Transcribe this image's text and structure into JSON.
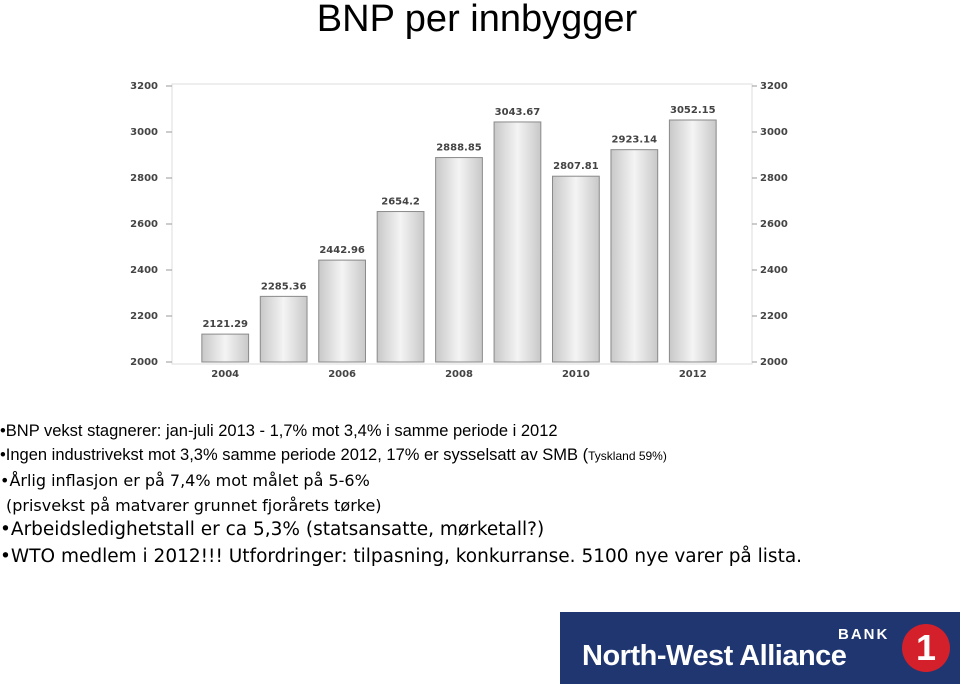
{
  "title": "BNP per innbygger",
  "chart_data": {
    "type": "bar",
    "categories": [
      "2004",
      null,
      "2006",
      null,
      "2008",
      null,
      "2010",
      null,
      "2012"
    ],
    "values": [
      2121.29,
      2285.36,
      2442.96,
      2654.2,
      2888.85,
      3043.67,
      2807.81,
      2923.14,
      3052.15
    ],
    "color": "#e2e2e2",
    "ylim": [
      2000,
      3200
    ],
    "yticks": [
      2000,
      2200,
      2400,
      2600,
      2800,
      3000,
      3200
    ],
    "y2lim": [
      2000,
      3200
    ],
    "y2ticks": [
      2000,
      2200,
      2400,
      2600,
      2800,
      3000,
      3200
    ],
    "grid": false
  },
  "bullets": [
    "BNP vekst stagnerer: jan-juli 2013 - 1,7%  mot 3,4% i samme periode i 2012",
    "Ingen industrivekst mot 3,3% samme periode 2012, 17% er sysselsatt av SMB (",
    "Årlig inflasjon er på 7,4% mot målet på 5-6%",
    "(prisvekst på matvarer grunnet fjorårets tørke)",
    "Arbeidsledighetstall er ca 5,3% (statsansatte, mørketall?)",
    "WTO medlem i 2012!!! Utfordringer: tilpasning, konkurranse. 5100 nye varer på lista."
  ],
  "note": "Tyskland 59%)",
  "logo": {
    "bank": "BANK",
    "name": "North-West Alliance",
    "mark": "1"
  }
}
